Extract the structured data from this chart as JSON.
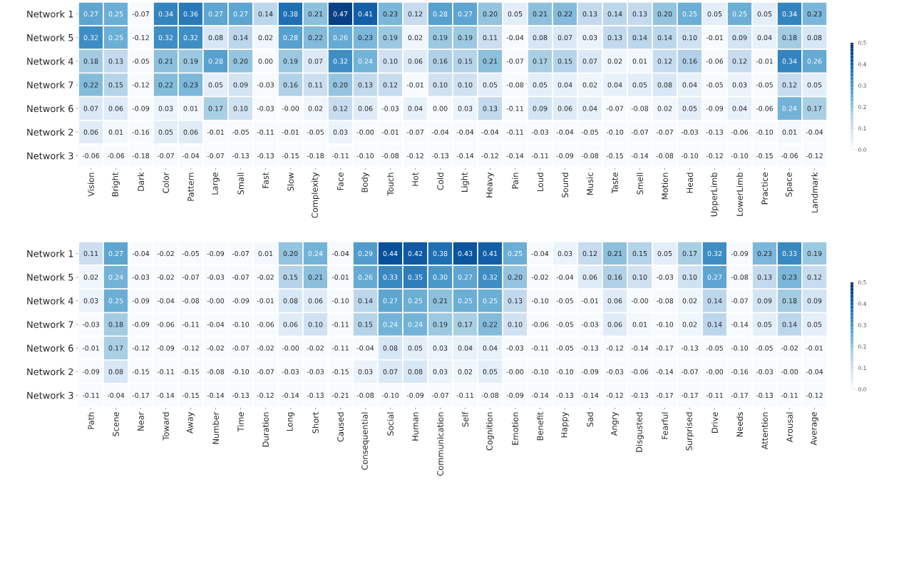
{
  "chart_data": [
    {
      "type": "heatmap",
      "categories": [
        "Vision",
        "Bright",
        "Dark",
        "Color",
        "Pattern",
        "Large",
        "Small",
        "Fast",
        "Slow",
        "Complexity",
        "Face",
        "Body",
        "Touch",
        "Hot",
        "Cold",
        "Light",
        "Heavy",
        "Pain",
        "Loud",
        "Sound",
        "Music",
        "Taste",
        "Smell",
        "Motion",
        "Head",
        "UpperLimb",
        "LowerLimb",
        "Practice",
        "Space",
        "Landmark"
      ],
      "y_categories": [
        "Network 1",
        "Network 5",
        "Network 4",
        "Network 7",
        "Network 6",
        "Network 2",
        "Network 3"
      ],
      "cells": [
        [
          0.27,
          0.25,
          -0.07,
          0.34,
          0.36,
          0.27,
          0.27,
          0.14,
          0.38,
          0.21,
          0.47,
          0.41,
          0.23,
          0.12,
          0.28,
          0.27,
          0.2,
          0.05,
          0.21,
          0.22,
          0.13,
          0.14,
          0.13,
          0.2,
          0.25,
          0.05,
          0.25,
          0.05,
          0.34,
          0.23
        ],
        [
          0.32,
          0.25,
          -0.12,
          0.32,
          0.32,
          0.08,
          0.14,
          0.02,
          0.28,
          0.22,
          0.26,
          0.23,
          0.19,
          0.02,
          0.19,
          0.19,
          0.11,
          -0.04,
          0.08,
          0.07,
          0.03,
          0.13,
          0.14,
          0.14,
          0.1,
          -0.01,
          0.09,
          0.04,
          0.18,
          0.08
        ],
        [
          0.18,
          0.13,
          -0.05,
          0.21,
          0.19,
          0.28,
          0.2,
          0.0,
          0.19,
          0.07,
          0.32,
          0.24,
          0.1,
          0.06,
          0.16,
          0.15,
          0.21,
          -0.07,
          0.17,
          0.15,
          0.07,
          0.02,
          0.01,
          0.12,
          0.16,
          -0.06,
          0.12,
          -0.01,
          0.34,
          0.26
        ],
        [
          0.22,
          0.15,
          -0.12,
          0.22,
          0.23,
          0.05,
          0.09,
          -0.03,
          0.16,
          0.11,
          0.2,
          0.13,
          0.12,
          -0.01,
          0.1,
          0.1,
          0.05,
          -0.08,
          0.05,
          0.04,
          0.02,
          0.04,
          0.05,
          0.08,
          0.04,
          -0.05,
          0.03,
          -0.05,
          0.12,
          0.05
        ],
        [
          0.07,
          0.06,
          -0.09,
          0.03,
          0.01,
          0.17,
          0.1,
          -0.03,
          0.0,
          0.02,
          0.12,
          0.06,
          -0.03,
          0.04,
          0.0,
          0.03,
          0.13,
          -0.11,
          0.09,
          0.06,
          0.04,
          -0.07,
          -0.08,
          0.02,
          0.05,
          -0.09,
          0.04,
          -0.06,
          0.24,
          0.17
        ],
        [
          0.06,
          0.01,
          -0.16,
          0.05,
          0.06,
          -0.01,
          -0.05,
          -0.11,
          -0.01,
          -0.05,
          0.03,
          0.0,
          -0.01,
          -0.07,
          -0.04,
          -0.04,
          -0.04,
          -0.11,
          -0.03,
          -0.04,
          -0.05,
          -0.1,
          -0.07,
          -0.07,
          -0.03,
          -0.13,
          -0.06,
          -0.1,
          0.01,
          -0.04
        ],
        [
          -0.06,
          -0.06,
          -0.18,
          -0.07,
          -0.04,
          -0.07,
          -0.13,
          -0.13,
          -0.15,
          -0.18,
          -0.11,
          -0.1,
          -0.08,
          -0.12,
          -0.13,
          -0.14,
          -0.12,
          -0.14,
          -0.11,
          -0.09,
          -0.08,
          -0.15,
          -0.14,
          -0.08,
          -0.1,
          -0.12,
          -0.1,
          -0.15,
          -0.06,
          -0.12
        ]
      ],
      "cell_labels": [
        [
          "0.27",
          "0.25",
          "-0.07",
          "0.34",
          "0.36",
          "0.27",
          "0.27",
          "0.14",
          "0.38",
          "0.21",
          "0.47",
          "0.41",
          "0.23",
          "0.12",
          "0.28",
          "0.27",
          "0.20",
          "0.05",
          "0.21",
          "0.22",
          "0.13",
          "0.14",
          "0.13",
          "0.20",
          "0.25",
          "0.05",
          "0.25",
          "0.05",
          "0.34",
          "0.23"
        ],
        [
          "0.32",
          "0.25",
          "-0.12",
          "0.32",
          "0.32",
          "0.08",
          "0.14",
          "0.02",
          "0.28",
          "0.22",
          "0.26",
          "0.23",
          "0.19",
          "0.02",
          "0.19",
          "0.19",
          "0.11",
          "-0.04",
          "0.08",
          "0.07",
          "0.03",
          "0.13",
          "0.14",
          "0.14",
          "0.10",
          "-0.01",
          "0.09",
          "0.04",
          "0.18",
          "0.08"
        ],
        [
          "0.18",
          "0.13",
          "-0.05",
          "0.21",
          "0.19",
          "0.28",
          "0.20",
          "0.00",
          "0.19",
          "0.07",
          "0.32",
          "0.24",
          "0.10",
          "0.06",
          "0.16",
          "0.15",
          "0.21",
          "-0.07",
          "0.17",
          "0.15",
          "0.07",
          "0.02",
          "0.01",
          "0.12",
          "0.16",
          "-0.06",
          "0.12",
          "-0.01",
          "0.34",
          "0.26"
        ],
        [
          "0.22",
          "0.15",
          "-0.12",
          "0.22",
          "0.23",
          "0.05",
          "0.09",
          "-0.03",
          "0.16",
          "0.11",
          "0.20",
          "0.13",
          "0.12",
          "-0.01",
          "0.10",
          "0.10",
          "0.05",
          "-0.08",
          "0.05",
          "0.04",
          "0.02",
          "0.04",
          "0.05",
          "0.08",
          "0.04",
          "-0.05",
          "0.03",
          "-0.05",
          "0.12",
          "0.05"
        ],
        [
          "0.07",
          "0.06",
          "-0.09",
          "0.03",
          "0.01",
          "0.17",
          "0.10",
          "-0.03",
          "-0.00",
          "0.02",
          "0.12",
          "0.06",
          "-0.03",
          "0.04",
          "0.00",
          "0.03",
          "0.13",
          "-0.11",
          "0.09",
          "0.06",
          "0.04",
          "-0.07",
          "-0.08",
          "0.02",
          "0.05",
          "-0.09",
          "0.04",
          "-0.06",
          "0.24",
          "0.17"
        ],
        [
          "0.06",
          "0.01",
          "-0.16",
          "0.05",
          "0.06",
          "-0.01",
          "-0.05",
          "-0.11",
          "-0.01",
          "-0.05",
          "0.03",
          "-0.00",
          "-0.01",
          "-0.07",
          "-0.04",
          "-0.04",
          "-0.04",
          "-0.11",
          "-0.03",
          "-0.04",
          "-0.05",
          "-0.10",
          "-0.07",
          "-0.07",
          "-0.03",
          "-0.13",
          "-0.06",
          "-0.10",
          "0.01",
          "-0.04"
        ],
        [
          "-0.06",
          "-0.06",
          "-0.18",
          "-0.07",
          "-0.04",
          "-0.07",
          "-0.13",
          "-0.13",
          "-0.15",
          "-0.18",
          "-0.11",
          "-0.10",
          "-0.08",
          "-0.12",
          "-0.13",
          "-0.14",
          "-0.12",
          "-0.14",
          "-0.11",
          "-0.09",
          "-0.08",
          "-0.15",
          "-0.14",
          "-0.08",
          "-0.10",
          "-0.12",
          "-0.10",
          "-0.15",
          "-0.06",
          "-0.12"
        ]
      ],
      "clim": [
        0,
        0.5
      ],
      "cticks": [
        {
          "value": 0,
          "label": "0.0"
        },
        0.1,
        0.2,
        0.3,
        0.4,
        0.5
      ],
      "data_labels": true
    },
    {
      "type": "heatmap",
      "categories": [
        "Path",
        "Scene",
        "Near",
        "Toward",
        "Away",
        "Number",
        "Time",
        "Duration",
        "Long",
        "Short",
        "Caused",
        "Consequential",
        "Social",
        "Human",
        "Communication",
        "Self",
        "Cognition",
        "Emotion",
        "Benefit",
        "Happy",
        "Sad",
        "Angry",
        "Disgusted",
        "Fearful",
        "Surprised",
        "Drive",
        "Needs",
        "Attention",
        "Arousal",
        "Average"
      ],
      "y_categories": [
        "Network 1",
        "Network 5",
        "Network 4",
        "Network 7",
        "Network 6",
        "Network 2",
        "Network 3"
      ],
      "cells": [
        [
          0.11,
          0.27,
          -0.04,
          -0.02,
          -0.05,
          -0.09,
          -0.07,
          0.01,
          0.2,
          0.24,
          -0.04,
          0.29,
          0.44,
          0.42,
          0.38,
          0.43,
          0.41,
          0.25,
          -0.04,
          0.03,
          0.12,
          0.21,
          0.15,
          0.05,
          0.17,
          0.32,
          -0.09,
          0.23,
          0.33,
          0.19
        ],
        [
          0.02,
          0.24,
          -0.03,
          -0.02,
          -0.07,
          -0.03,
          -0.07,
          -0.02,
          0.15,
          0.21,
          -0.01,
          0.26,
          0.33,
          0.35,
          0.3,
          0.27,
          0.32,
          0.2,
          -0.02,
          -0.04,
          0.06,
          0.16,
          0.1,
          -0.03,
          0.1,
          0.27,
          -0.08,
          0.13,
          0.23,
          0.12
        ],
        [
          0.03,
          0.25,
          -0.09,
          -0.04,
          -0.08,
          0.0,
          -0.09,
          -0.01,
          0.08,
          0.06,
          -0.1,
          0.14,
          0.27,
          0.25,
          0.21,
          0.25,
          0.25,
          0.13,
          -0.1,
          -0.05,
          -0.01,
          0.06,
          0.0,
          -0.08,
          0.02,
          0.14,
          -0.07,
          0.09,
          0.18,
          0.09
        ],
        [
          -0.03,
          0.18,
          -0.09,
          -0.06,
          -0.11,
          -0.04,
          -0.1,
          -0.06,
          0.06,
          0.1,
          -0.11,
          0.15,
          0.24,
          0.24,
          0.19,
          0.17,
          0.22,
          0.1,
          -0.06,
          -0.05,
          -0.03,
          0.06,
          0.01,
          -0.1,
          0.02,
          0.14,
          -0.14,
          0.05,
          0.14,
          0.05
        ],
        [
          -0.01,
          0.17,
          -0.12,
          -0.09,
          -0.12,
          -0.02,
          -0.07,
          -0.02,
          0.0,
          -0.02,
          -0.11,
          -0.04,
          0.08,
          0.05,
          0.03,
          0.04,
          0.04,
          -0.03,
          -0.11,
          -0.05,
          -0.13,
          -0.12,
          -0.14,
          -0.17,
          -0.13,
          -0.05,
          -0.1,
          -0.05,
          -0.02,
          -0.01
        ],
        [
          -0.09,
          0.08,
          -0.15,
          -0.11,
          -0.15,
          -0.08,
          -0.1,
          -0.07,
          -0.03,
          -0.03,
          -0.15,
          0.03,
          0.07,
          0.08,
          0.03,
          0.02,
          0.05,
          0.0,
          -0.1,
          -0.1,
          -0.09,
          -0.03,
          -0.06,
          -0.14,
          -0.07,
          0.0,
          -0.16,
          -0.03,
          0.0,
          -0.04
        ],
        [
          -0.11,
          -0.04,
          -0.17,
          -0.14,
          -0.15,
          -0.14,
          -0.13,
          -0.12,
          -0.14,
          -0.13,
          -0.21,
          -0.08,
          -0.1,
          -0.09,
          -0.07,
          -0.11,
          -0.08,
          -0.09,
          -0.14,
          -0.13,
          -0.14,
          -0.12,
          -0.13,
          -0.17,
          -0.17,
          -0.11,
          -0.17,
          -0.13,
          -0.11,
          -0.12
        ]
      ],
      "cell_labels": [
        [
          "0.11",
          "0.27",
          "-0.04",
          "-0.02",
          "-0.05",
          "-0.09",
          "-0.07",
          "0.01",
          "0.20",
          "0.24",
          "-0.04",
          "0.29",
          "0.44",
          "0.42",
          "0.38",
          "0.43",
          "0.41",
          "0.25",
          "-0.04",
          "0.03",
          "0.12",
          "0.21",
          "0.15",
          "0.05",
          "0.17",
          "0.32",
          "-0.09",
          "0.23",
          "0.33",
          "0.19"
        ],
        [
          "0.02",
          "0.24",
          "-0.03",
          "-0.02",
          "-0.07",
          "-0.03",
          "-0.07",
          "-0.02",
          "0.15",
          "0.21",
          "-0.01",
          "0.26",
          "0.33",
          "0.35",
          "0.30",
          "0.27",
          "0.32",
          "0.20",
          "-0.02",
          "-0.04",
          "0.06",
          "0.16",
          "0.10",
          "-0.03",
          "0.10",
          "0.27",
          "-0.08",
          "0.13",
          "0.23",
          "0.12"
        ],
        [
          "0.03",
          "0.25",
          "-0.09",
          "-0.04",
          "-0.08",
          "-0.00",
          "-0.09",
          "-0.01",
          "0.08",
          "0.06",
          "-0.10",
          "0.14",
          "0.27",
          "0.25",
          "0.21",
          "0.25",
          "0.25",
          "0.13",
          "-0.10",
          "-0.05",
          "-0.01",
          "0.06",
          "-0.00",
          "-0.08",
          "0.02",
          "0.14",
          "-0.07",
          "0.09",
          "0.18",
          "0.09"
        ],
        [
          "-0.03",
          "0.18",
          "-0.09",
          "-0.06",
          "-0.11",
          "-0.04",
          "-0.10",
          "-0.06",
          "0.06",
          "0.10",
          "-0.11",
          "0.15",
          "0.24",
          "0.24",
          "0.19",
          "0.17",
          "0.22",
          "0.10",
          "-0.06",
          "-0.05",
          "-0.03",
          "0.06",
          "0.01",
          "-0.10",
          "0.02",
          "0.14",
          "-0.14",
          "0.05",
          "0.14",
          "0.05"
        ],
        [
          "-0.01",
          "0.17",
          "-0.12",
          "-0.09",
          "-0.12",
          "-0.02",
          "-0.07",
          "-0.02",
          "-0.00",
          "-0.02",
          "-0.11",
          "-0.04",
          "0.08",
          "0.05",
          "0.03",
          "0.04",
          "0.04",
          "-0.03",
          "-0.11",
          "-0.05",
          "-0.13",
          "-0.12",
          "-0.14",
          "-0.17",
          "-0.13",
          "-0.05",
          "-0.10",
          "-0.05",
          "-0.02",
          "-0.01"
        ],
        [
          "-0.09",
          "0.08",
          "-0.15",
          "-0.11",
          "-0.15",
          "-0.08",
          "-0.10",
          "-0.07",
          "-0.03",
          "-0.03",
          "-0.15",
          "0.03",
          "0.07",
          "0.08",
          "0.03",
          "0.02",
          "0.05",
          "-0.00",
          "-0.10",
          "-0.10",
          "-0.09",
          "-0.03",
          "-0.06",
          "-0.14",
          "-0.07",
          "-0.00",
          "-0.16",
          "-0.03",
          "-0.00",
          "-0.04"
        ],
        [
          "-0.11",
          "-0.04",
          "-0.17",
          "-0.14",
          "-0.15",
          "-0.14",
          "-0.13",
          "-0.12",
          "-0.14",
          "-0.13",
          "-0.21",
          "-0.08",
          "-0.10",
          "-0.09",
          "-0.07",
          "-0.11",
          "-0.08",
          "-0.09",
          "-0.14",
          "-0.13",
          "-0.14",
          "-0.12",
          "-0.13",
          "-0.17",
          "-0.17",
          "-0.11",
          "-0.17",
          "-0.13",
          "-0.11",
          "-0.12"
        ]
      ],
      "clim": [
        0,
        0.5
      ],
      "cticks": [
        {
          "value": 0,
          "label": "0.0"
        },
        0.1,
        0.2,
        0.3,
        0.4,
        0.5
      ],
      "data_labels": true
    }
  ]
}
